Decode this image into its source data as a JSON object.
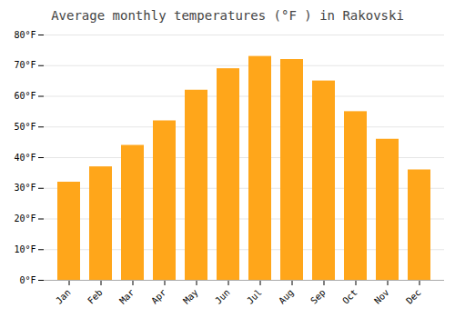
{
  "chart_data": {
    "type": "bar",
    "title": "Average monthly temperatures (°F ) in Rakovski",
    "categories": [
      "Jan",
      "Feb",
      "Mar",
      "Apr",
      "May",
      "Jun",
      "Jul",
      "Aug",
      "Sep",
      "Oct",
      "Nov",
      "Dec"
    ],
    "values": [
      32,
      37,
      44,
      52,
      62,
      69,
      73,
      72,
      65,
      55,
      46,
      36
    ],
    "color": "#FFA61A",
    "ylim": [
      0,
      80
    ],
    "yticks": [
      {
        "value": 0,
        "label": "0°F"
      },
      {
        "value": 10,
        "label": "10°F"
      },
      {
        "value": 20,
        "label": "20°F"
      },
      {
        "value": 30,
        "label": "30°F"
      },
      {
        "value": 40,
        "label": "40°F"
      },
      {
        "value": 50,
        "label": "50°F"
      },
      {
        "value": 60,
        "label": "60°F"
      },
      {
        "value": 70,
        "label": "70°F"
      },
      {
        "value": 80,
        "label": "80°F"
      }
    ],
    "grid": true
  }
}
